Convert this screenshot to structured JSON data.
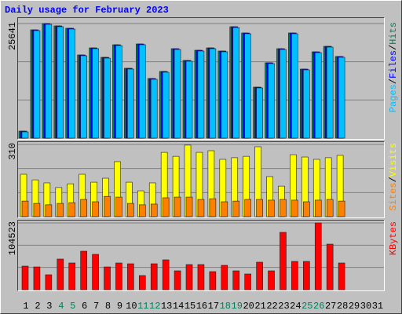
{
  "chart_data": [
    {
      "type": "bar",
      "title": "Daily usage for February 2023",
      "ylim": [
        0,
        25641
      ],
      "yticks": [
        25641
      ],
      "legend_separator": "/",
      "series": [
        {
          "name": "Hits",
          "color": "#00805c",
          "values": [
            1581,
            24236,
            25641,
            25116,
            24586,
            18616,
            20196,
            18086,
            20896,
            15631,
            21076,
            13346,
            14926,
            20021,
            17386,
            19671,
            20196,
            19496,
            24936,
            23536,
            11416,
            16861,
            20021,
            23536,
            15456,
            19316,
            20546,
            18266,
            null,
            null,
            null
          ]
        },
        {
          "name": "Files",
          "color": "#0000ff",
          "values": [
            1581,
            24236,
            25641,
            25116,
            24586,
            18616,
            20196,
            18086,
            20896,
            15631,
            21076,
            13346,
            14926,
            20021,
            17386,
            19671,
            20196,
            19496,
            24936,
            23536,
            11416,
            16861,
            20021,
            23536,
            15456,
            19316,
            20546,
            18266,
            null,
            null,
            null
          ]
        },
        {
          "name": "Pages",
          "color": "#00c0ff",
          "values": [
            1405,
            24060,
            25465,
            24940,
            24410,
            18440,
            20020,
            17910,
            20720,
            15455,
            20900,
            13170,
            14750,
            19845,
            17210,
            19495,
            20020,
            19320,
            24760,
            23360,
            11240,
            16685,
            19845,
            23360,
            15280,
            19140,
            20370,
            18090,
            null,
            null,
            null
          ]
        }
      ]
    },
    {
      "type": "bar",
      "ylim": [
        0,
        310
      ],
      "yticks": [
        310
      ],
      "legend_separator": "/",
      "series": [
        {
          "name": "Visits",
          "color": "#ffff00",
          "values": [
            182,
            158,
            145,
            125,
            141,
            182,
            148,
            165,
            236,
            148,
            111,
            145,
            276,
            259,
            307,
            276,
            283,
            246,
            253,
            259,
            300,
            172,
            131,
            266,
            256,
            246,
            253,
            263,
            null,
            null,
            null
          ]
        },
        {
          "name": "Sites",
          "color": "#ff8000",
          "values": [
            67,
            57,
            51,
            57,
            60,
            74,
            64,
            87,
            84,
            57,
            51,
            54,
            81,
            84,
            84,
            74,
            77,
            64,
            67,
            74,
            74,
            71,
            74,
            71,
            64,
            71,
            74,
            67,
            null,
            null,
            null
          ]
        }
      ]
    },
    {
      "type": "bar",
      "ylim": [
        0,
        104523
      ],
      "yticks": [
        104523
      ],
      "categories": [
        "1",
        "2",
        "3",
        "4",
        "5",
        "6",
        "7",
        "8",
        "9",
        "10",
        "11",
        "12",
        "13",
        "14",
        "15",
        "16",
        "17",
        "18",
        "19",
        "20",
        "21",
        "22",
        "23",
        "24",
        "25",
        "26",
        "27",
        "28",
        "29",
        "30",
        "31"
      ],
      "highlighted": [
        3,
        4,
        10,
        11,
        17,
        18,
        24,
        25
      ],
      "highlight_color": "#00805c",
      "series": [
        {
          "name": "KBytes",
          "color": "#ff0000",
          "values": [
            36890,
            35660,
            23360,
            47960,
            41810,
            60250,
            55340,
            35660,
            41810,
            40580,
            22130,
            40580,
            46730,
            29510,
            39350,
            39350,
            28280,
            38120,
            29510,
            24590,
            43040,
            29510,
            89770,
            44270,
            44270,
            104523,
            71320,
            41810,
            null,
            null,
            null
          ]
        }
      ]
    }
  ]
}
